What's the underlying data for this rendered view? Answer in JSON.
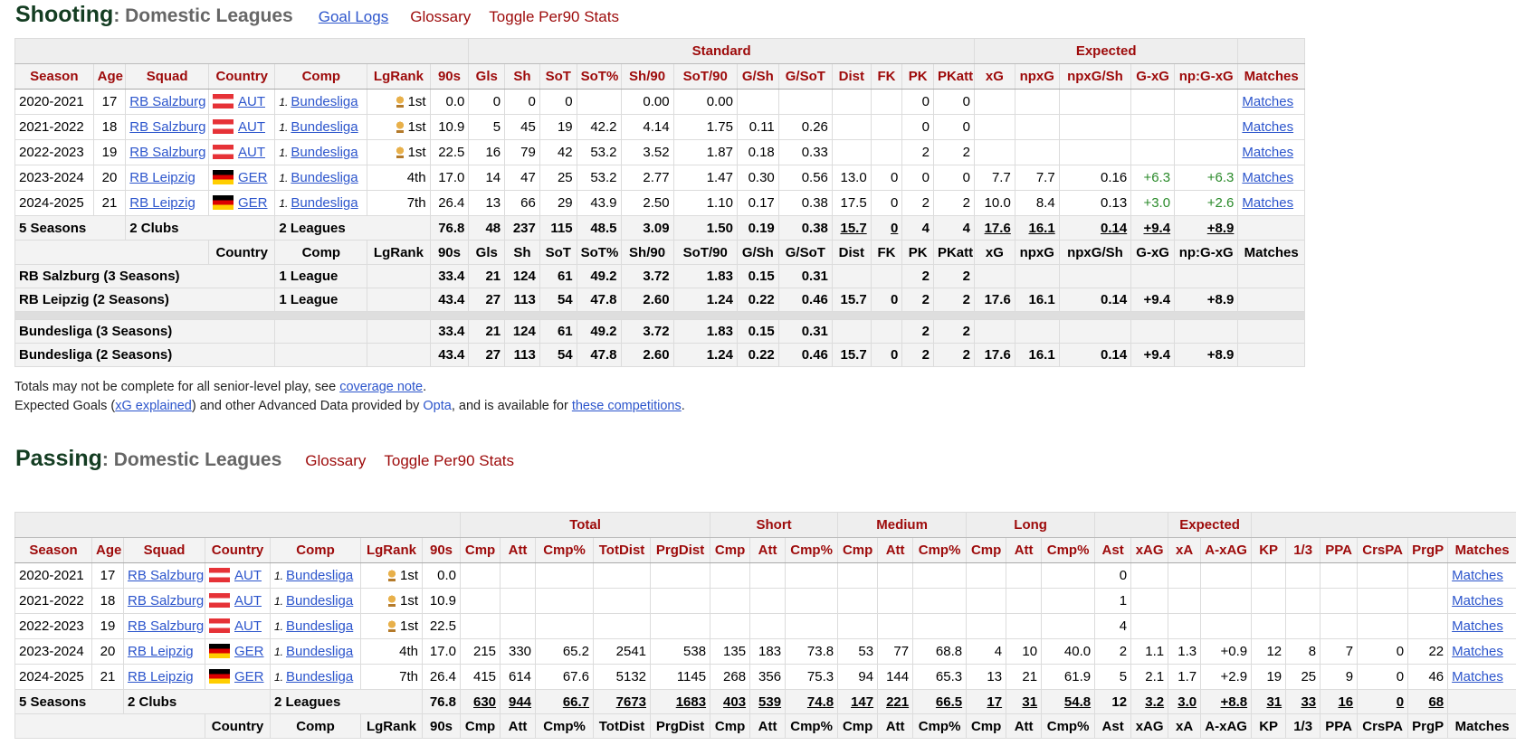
{
  "shooting": {
    "title": "Shooting",
    "subtitle": ": Domestic Leagues",
    "links": {
      "goal_logs": "Goal Logs",
      "glossary": "Glossary",
      "toggle": "Toggle Per90 Stats"
    },
    "groups": {
      "standard": "Standard",
      "expected": "Expected"
    },
    "columns": [
      "Season",
      "Age",
      "Squad",
      "Country",
      "Comp",
      "LgRank",
      "90s",
      "Gls",
      "Sh",
      "SoT",
      "SoT%",
      "Sh/90",
      "SoT/90",
      "G/Sh",
      "G/SoT",
      "Dist",
      "FK",
      "PK",
      "PKatt",
      "xG",
      "npxG",
      "npxG/Sh",
      "G-xG",
      "np:G-xG",
      "Matches"
    ],
    "rows": [
      [
        "2020-2021",
        "17",
        "RB Salzburg",
        "AUT",
        "Bundesliga",
        "1st",
        "0.0",
        "0",
        "0",
        "0",
        "",
        "0.00",
        "0.00",
        "",
        "",
        "",
        "",
        "0",
        "0",
        "",
        "",
        "",
        "",
        "",
        "Matches"
      ],
      [
        "2021-2022",
        "18",
        "RB Salzburg",
        "AUT",
        "Bundesliga",
        "1st",
        "10.9",
        "5",
        "45",
        "19",
        "42.2",
        "4.14",
        "1.75",
        "0.11",
        "0.26",
        "",
        "",
        "0",
        "0",
        "",
        "",
        "",
        "",
        "",
        "Matches"
      ],
      [
        "2022-2023",
        "19",
        "RB Salzburg",
        "AUT",
        "Bundesliga",
        "1st",
        "22.5",
        "16",
        "79",
        "42",
        "53.2",
        "3.52",
        "1.87",
        "0.18",
        "0.33",
        "",
        "",
        "2",
        "2",
        "",
        "",
        "",
        "",
        "",
        "Matches"
      ],
      [
        "2023-2024",
        "20",
        "RB Leipzig",
        "GER",
        "Bundesliga",
        "4th",
        "17.0",
        "14",
        "47",
        "25",
        "53.2",
        "2.77",
        "1.47",
        "0.30",
        "0.56",
        "13.0",
        "0",
        "0",
        "0",
        "7.7",
        "7.7",
        "0.16",
        "+6.3",
        "+6.3",
        "Matches"
      ],
      [
        "2024-2025",
        "21",
        "RB Leipzig",
        "GER",
        "Bundesliga",
        "7th",
        "26.4",
        "13",
        "66",
        "29",
        "43.9",
        "2.50",
        "1.10",
        "0.17",
        "0.38",
        "17.5",
        "0",
        "2",
        "2",
        "10.0",
        "8.4",
        "0.13",
        "+3.0",
        "+2.6",
        "Matches"
      ]
    ],
    "total": [
      "5 Seasons",
      "2 Clubs",
      "2 Leagues",
      "76.8",
      "48",
      "237",
      "115",
      "48.5",
      "3.09",
      "1.50",
      "0.19",
      "0.38",
      "15.7",
      "0",
      "4",
      "4",
      "17.6",
      "16.1",
      "0.14",
      "+9.4",
      "+8.9"
    ],
    "columns2": [
      "Country",
      "Comp",
      "LgRank",
      "90s",
      "Gls",
      "Sh",
      "SoT",
      "SoT%",
      "Sh/90",
      "SoT/90",
      "G/Sh",
      "G/SoT",
      "Dist",
      "FK",
      "PK",
      "PKatt",
      "xG",
      "npxG",
      "npxG/Sh",
      "G-xG",
      "np:G-xG",
      "Matches"
    ],
    "club_rows": [
      [
        "RB Salzburg (3 Seasons)",
        "1 League",
        "33.4",
        "21",
        "124",
        "61",
        "49.2",
        "3.72",
        "1.83",
        "0.15",
        "0.31",
        "",
        "",
        "2",
        "2",
        "",
        "",
        "",
        "",
        ""
      ],
      [
        "RB Leipzig (2 Seasons)",
        "1 League",
        "43.4",
        "27",
        "113",
        "54",
        "47.8",
        "2.60",
        "1.24",
        "0.22",
        "0.46",
        "15.7",
        "0",
        "2",
        "2",
        "17.6",
        "16.1",
        "0.14",
        "+9.4",
        "+8.9"
      ]
    ],
    "league_rows": [
      [
        "Bundesliga (3 Seasons)",
        "",
        "33.4",
        "21",
        "124",
        "61",
        "49.2",
        "3.72",
        "1.83",
        "0.15",
        "0.31",
        "",
        "",
        "2",
        "2",
        "",
        "",
        "",
        "",
        ""
      ],
      [
        "Bundesliga (2 Seasons)",
        "",
        "43.4",
        "27",
        "113",
        "54",
        "47.8",
        "2.60",
        "1.24",
        "0.22",
        "0.46",
        "15.7",
        "0",
        "2",
        "2",
        "17.6",
        "16.1",
        "0.14",
        "+9.4",
        "+8.9"
      ]
    ]
  },
  "notes": {
    "line1_pre": "Totals may not be complete for all senior-level play, see ",
    "line1_link": "coverage note",
    "line1_post": ".",
    "line2_pre": "Expected Goals (",
    "line2_link1": "xG explained",
    "line2_mid": ") and other Advanced Data provided by ",
    "line2_link2": "Opta",
    "line2_mid2": ", and is available for ",
    "line2_link3": "these competitions",
    "line2_post": "."
  },
  "passing": {
    "title": "Passing",
    "subtitle": ": Domestic Leagues",
    "links": {
      "glossary": "Glossary",
      "toggle": "Toggle Per90 Stats"
    },
    "groups": {
      "total": "Total",
      "short": "Short",
      "medium": "Medium",
      "long": "Long",
      "expected": "Expected"
    },
    "columns": [
      "Season",
      "Age",
      "Squad",
      "Country",
      "Comp",
      "LgRank",
      "90s",
      "Cmp",
      "Att",
      "Cmp%",
      "TotDist",
      "PrgDist",
      "Cmp",
      "Att",
      "Cmp%",
      "Cmp",
      "Att",
      "Cmp%",
      "Cmp",
      "Att",
      "Cmp%",
      "Ast",
      "xAG",
      "xA",
      "A-xAG",
      "KP",
      "1/3",
      "PPA",
      "CrsPA",
      "PrgP",
      "Matches"
    ],
    "rows": [
      [
        "2020-2021",
        "17",
        "RB Salzburg",
        "AUT",
        "Bundesliga",
        "1st",
        "0.0",
        "",
        "",
        "",
        "",
        "",
        "",
        "",
        "",
        "",
        "",
        "",
        "",
        "",
        "",
        "0",
        "",
        "",
        "",
        "",
        "",
        "",
        "",
        "",
        "Matches"
      ],
      [
        "2021-2022",
        "18",
        "RB Salzburg",
        "AUT",
        "Bundesliga",
        "1st",
        "10.9",
        "",
        "",
        "",
        "",
        "",
        "",
        "",
        "",
        "",
        "",
        "",
        "",
        "",
        "",
        "1",
        "",
        "",
        "",
        "",
        "",
        "",
        "",
        "",
        "Matches"
      ],
      [
        "2022-2023",
        "19",
        "RB Salzburg",
        "AUT",
        "Bundesliga",
        "1st",
        "22.5",
        "",
        "",
        "",
        "",
        "",
        "",
        "",
        "",
        "",
        "",
        "",
        "",
        "",
        "",
        "4",
        "",
        "",
        "",
        "",
        "",
        "",
        "",
        "",
        "Matches"
      ],
      [
        "2023-2024",
        "20",
        "RB Leipzig",
        "GER",
        "Bundesliga",
        "4th",
        "17.0",
        "215",
        "330",
        "65.2",
        "2541",
        "538",
        "135",
        "183",
        "73.8",
        "53",
        "77",
        "68.8",
        "4",
        "10",
        "40.0",
        "2",
        "1.1",
        "1.3",
        "+0.9",
        "12",
        "8",
        "7",
        "0",
        "22",
        "Matches"
      ],
      [
        "2024-2025",
        "21",
        "RB Leipzig",
        "GER",
        "Bundesliga",
        "7th",
        "26.4",
        "415",
        "614",
        "67.6",
        "5132",
        "1145",
        "268",
        "356",
        "75.3",
        "94",
        "144",
        "65.3",
        "13",
        "21",
        "61.9",
        "5",
        "2.1",
        "1.7",
        "+2.9",
        "19",
        "25",
        "9",
        "0",
        "46",
        "Matches"
      ]
    ],
    "total": [
      "5 Seasons",
      "2 Clubs",
      "2 Leagues",
      "76.8",
      "630",
      "944",
      "66.7",
      "7673",
      "1683",
      "403",
      "539",
      "74.8",
      "147",
      "221",
      "66.5",
      "17",
      "31",
      "54.8",
      "12",
      "3.2",
      "3.0",
      "+8.8",
      "31",
      "33",
      "16",
      "0",
      "68"
    ],
    "columns2": [
      "Country",
      "Comp",
      "LgRank",
      "90s",
      "Cmp",
      "Att",
      "Cmp%",
      "TotDist",
      "PrgDist",
      "Cmp",
      "Att",
      "Cmp%",
      "Cmp",
      "Att",
      "Cmp%",
      "Cmp",
      "Att",
      "Cmp%",
      "Ast",
      "xAG",
      "xA",
      "A-xAG",
      "KP",
      "1/3",
      "PPA",
      "CrsPA",
      "PrgP",
      "Matches"
    ]
  },
  "colors": {
    "header_red": "#9d0a0a",
    "link_blue": "#2c55cc",
    "positive_green": "#2a8a2a",
    "title_green": "#143d22"
  },
  "icons": {
    "trophy": "trophy-icon",
    "flag_aut": "austria-flag-icon",
    "flag_ger": "germany-flag-icon"
  }
}
